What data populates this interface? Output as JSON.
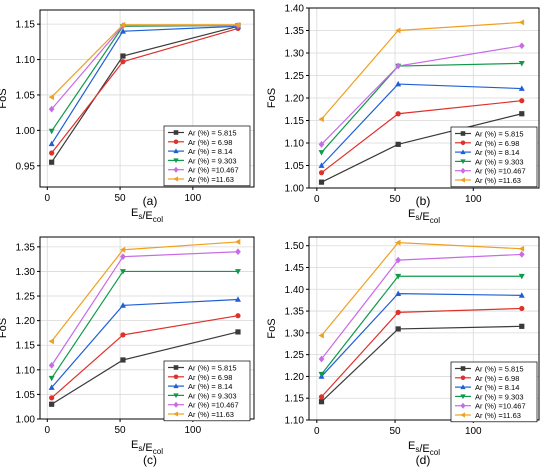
{
  "chart_data": [
    {
      "panel_label": "(a)",
      "type": "line",
      "xlabel": "E_s/E_col",
      "ylabel": "FoS",
      "xlim": [
        -5,
        142
      ],
      "ylim": [
        0.92,
        1.17
      ],
      "xticks": [
        0,
        50,
        100
      ],
      "yticks": [
        0.95,
        1.0,
        1.05,
        1.1,
        1.15
      ],
      "yformat": 2,
      "grid": true,
      "legend_position": "lower-right",
      "x": [
        3,
        52,
        131
      ],
      "series": [
        {
          "name": "Ar (%) = 5.815",
          "values": [
            0.955,
            1.105,
            1.147
          ]
        },
        {
          "name": "Ar (%) = 6.98",
          "values": [
            0.968,
            1.097,
            1.144
          ]
        },
        {
          "name": "Ar (%) = 8.14",
          "values": [
            0.981,
            1.14,
            1.147
          ]
        },
        {
          "name": "Ar (%) = 9.303",
          "values": [
            0.999,
            1.147,
            1.148
          ]
        },
        {
          "name": "Ar (%) =10.467",
          "values": [
            1.03,
            1.148,
            1.148
          ]
        },
        {
          "name": "Ar (%) =11.63",
          "values": [
            1.047,
            1.149,
            1.149
          ]
        }
      ]
    },
    {
      "panel_label": "(b)",
      "type": "line",
      "xlabel": "E_s/E_col",
      "ylabel": "FoS",
      "xlim": [
        -5,
        142
      ],
      "ylim": [
        1.0,
        1.4
      ],
      "xticks": [
        0,
        50,
        100
      ],
      "yticks": [
        1.0,
        1.05,
        1.1,
        1.15,
        1.2,
        1.25,
        1.3,
        1.35,
        1.4
      ],
      "yformat": 2,
      "grid": true,
      "legend_position": "lower-right",
      "x": [
        3,
        52,
        131
      ],
      "series": [
        {
          "name": "Ar (%) = 5.815",
          "values": [
            1.013,
            1.097,
            1.165
          ]
        },
        {
          "name": "Ar (%) = 6.98",
          "values": [
            1.034,
            1.165,
            1.194
          ]
        },
        {
          "name": "Ar (%) = 8.14",
          "values": [
            1.05,
            1.231,
            1.221
          ]
        },
        {
          "name": "Ar (%) = 9.303",
          "values": [
            1.079,
            1.271,
            1.277
          ]
        },
        {
          "name": "Ar (%) =10.467",
          "values": [
            1.097,
            1.271,
            1.316
          ]
        },
        {
          "name": "Ar (%) =11.63",
          "values": [
            1.153,
            1.35,
            1.368
          ]
        }
      ]
    },
    {
      "panel_label": "(c)",
      "type": "line",
      "xlabel": "E_s/E_col",
      "ylabel": "FoS",
      "xlim": [
        -5,
        142
      ],
      "ylim": [
        1.0,
        1.37
      ],
      "xticks": [
        0,
        50,
        100
      ],
      "yticks": [
        1.0,
        1.05,
        1.1,
        1.15,
        1.2,
        1.25,
        1.3,
        1.35
      ],
      "yformat": 2,
      "grid": true,
      "legend_position": "lower-right",
      "x": [
        3,
        52,
        131
      ],
      "series": [
        {
          "name": "Ar (%) = 5.815",
          "values": [
            1.03,
            1.12,
            1.177
          ]
        },
        {
          "name": "Ar (%) = 6.98",
          "values": [
            1.043,
            1.171,
            1.21
          ]
        },
        {
          "name": "Ar (%) = 8.14",
          "values": [
            1.064,
            1.231,
            1.243
          ]
        },
        {
          "name": "Ar (%) = 9.303",
          "values": [
            1.083,
            1.3,
            1.3
          ]
        },
        {
          "name": "Ar (%) =10.467",
          "values": [
            1.109,
            1.33,
            1.34
          ]
        },
        {
          "name": "Ar (%) =11.63",
          "values": [
            1.158,
            1.344,
            1.36
          ]
        }
      ]
    },
    {
      "panel_label": "(d)",
      "type": "line",
      "xlabel": "E_s/E_col",
      "ylabel": "FoS",
      "xlim": [
        -5,
        142
      ],
      "ylim": [
        1.1,
        1.52
      ],
      "xticks": [
        0,
        50,
        100
      ],
      "yticks": [
        1.1,
        1.15,
        1.2,
        1.25,
        1.3,
        1.35,
        1.4,
        1.45,
        1.5
      ],
      "yformat": 2,
      "grid": true,
      "legend_position": "lower-right",
      "x": [
        3,
        52,
        131
      ],
      "series": [
        {
          "name": "Ar (%) = 5.815",
          "values": [
            1.142,
            1.309,
            1.315
          ]
        },
        {
          "name": "Ar (%) = 6.98",
          "values": [
            1.153,
            1.347,
            1.356
          ]
        },
        {
          "name": "Ar (%) = 8.14",
          "values": [
            1.2,
            1.39,
            1.386
          ]
        },
        {
          "name": "Ar (%) = 9.303",
          "values": [
            1.205,
            1.43,
            1.43
          ]
        },
        {
          "name": "Ar (%) =10.467",
          "values": [
            1.24,
            1.467,
            1.48
          ]
        },
        {
          "name": "Ar (%) =11.63",
          "values": [
            1.294,
            1.507,
            1.493
          ]
        }
      ]
    }
  ],
  "series_styles": [
    {
      "color": "#3a3a3a",
      "marker": "square"
    },
    {
      "color": "#e0302a",
      "marker": "circle"
    },
    {
      "color": "#1f5fd6",
      "marker": "triangle-up"
    },
    {
      "color": "#0f9a4a",
      "marker": "triangle-down"
    },
    {
      "color": "#c86be6",
      "marker": "diamond"
    },
    {
      "color": "#f0a020",
      "marker": "triangle-left"
    }
  ],
  "colors": {
    "grid": "#d9d9d9",
    "axis": "#000000",
    "background": "#ffffff"
  }
}
